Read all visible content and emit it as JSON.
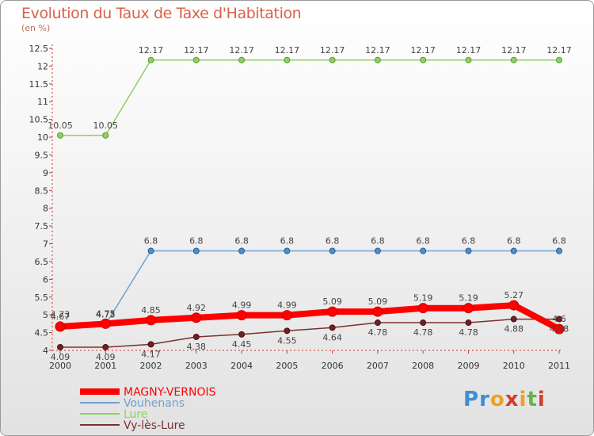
{
  "title": "Evolution du Taux de Taxe d'Habitation",
  "subtitle": "(en %)",
  "logo_text": [
    "P",
    "r",
    "o",
    "x",
    "i",
    "t",
    "i"
  ],
  "logo_colors": [
    "#3a8fd6",
    "#3a8fd6",
    "#f0a020",
    "#d83a2a",
    "#f0a020",
    "#6ab04c",
    "#d83a2a"
  ],
  "chart_data": {
    "type": "line",
    "title": "Evolution du Taux de Taxe d'Habitation",
    "subtitle": "(en %)",
    "x": [
      "2000",
      "2001",
      "2002",
      "2003",
      "2004",
      "2005",
      "2006",
      "2007",
      "2008",
      "2009",
      "2010",
      "2011"
    ],
    "ylim": [
      4,
      12.5
    ],
    "yticks": [
      "4",
      "4.5",
      "5",
      "5.5",
      "6",
      "6.5",
      "7",
      "7.5",
      "8",
      "8.5",
      "9",
      "9.5",
      "10",
      "10.5",
      "11",
      "11.5",
      "12",
      "12.5"
    ],
    "grid": false,
    "legend_placement": "bottom-left",
    "series": [
      {
        "name": "MAGNY-VERNOIS",
        "color": "#ff0000",
        "values": [
          4.67,
          4.75,
          4.85,
          4.92,
          4.99,
          4.99,
          5.09,
          5.09,
          5.19,
          5.19,
          5.27,
          4.6
        ],
        "labels": [
          "4.67",
          "4.75",
          "4.85",
          "4.92",
          "4.99",
          "4.99",
          "5.09",
          "5.09",
          "5.19",
          "5.19",
          "5.27",
          "4.6"
        ]
      },
      {
        "name": "Vouhenans",
        "color": "#6fa0cf",
        "values": [
          4.73,
          4.73,
          6.8,
          6.8,
          6.8,
          6.8,
          6.8,
          6.8,
          6.8,
          6.8,
          6.8,
          6.8
        ],
        "labels": [
          "4.73",
          "4.73",
          "6.8",
          "6.8",
          "6.8",
          "6.8",
          "6.8",
          "6.8",
          "6.8",
          "6.8",
          "6.8",
          "6.8"
        ]
      },
      {
        "name": "Lure",
        "color": "#90d060",
        "values": [
          10.05,
          10.05,
          12.17,
          12.17,
          12.17,
          12.17,
          12.17,
          12.17,
          12.17,
          12.17,
          12.17,
          12.17
        ],
        "labels": [
          "10.05",
          "10.05",
          "12.17",
          "12.17",
          "12.17",
          "12.17",
          "12.17",
          "12.17",
          "12.17",
          "12.17",
          "12.17",
          "12.17"
        ]
      },
      {
        "name": "Vy-lès-Lure",
        "color": "#7a3030",
        "values": [
          4.09,
          4.09,
          4.17,
          4.38,
          4.45,
          4.55,
          4.64,
          4.78,
          4.78,
          4.78,
          4.88,
          4.88
        ],
        "labels": [
          "4.09",
          "4.09",
          "4.17",
          "4.38",
          "4.45",
          "4.55",
          "4.64",
          "4.78",
          "4.78",
          "4.78",
          "4.88",
          "4.88"
        ]
      }
    ]
  }
}
